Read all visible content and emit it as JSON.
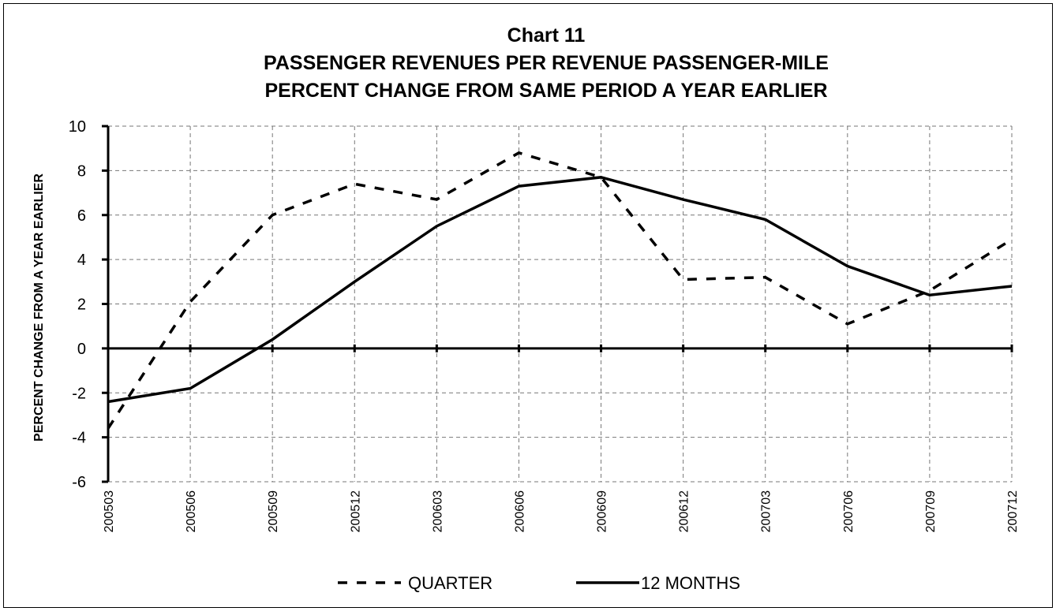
{
  "chart_data": {
    "type": "line",
    "title": [
      "Chart 11",
      "PASSENGER REVENUES PER REVENUE PASSENGER-MILE",
      "PERCENT CHANGE FROM SAME PERIOD A YEAR EARLIER"
    ],
    "y_label": "PERCENT CHANGE FROM A YEAR EARLIER",
    "categories": [
      "200503",
      "200506",
      "200509",
      "200512",
      "200603",
      "200606",
      "200609",
      "200612",
      "200703",
      "200706",
      "200709",
      "200712"
    ],
    "series": [
      {
        "name": "QUARTER",
        "color": "#000000",
        "dashed": true,
        "values": [
          -3.6,
          2.1,
          6.0,
          7.4,
          6.7,
          8.8,
          7.7,
          3.1,
          3.2,
          1.1,
          2.6,
          4.9
        ]
      },
      {
        "name": "12 MONTHS",
        "color": "#000000",
        "dashed": false,
        "values": [
          -2.4,
          -1.8,
          0.4,
          3.0,
          5.5,
          7.3,
          7.7,
          6.7,
          5.8,
          3.7,
          2.4,
          2.8
        ]
      }
    ],
    "ylim": [
      -6,
      10
    ],
    "yticks": [
      -6,
      -4,
      -2,
      0,
      2,
      4,
      6,
      8,
      10
    ],
    "grid": true,
    "legend": "bottom"
  }
}
